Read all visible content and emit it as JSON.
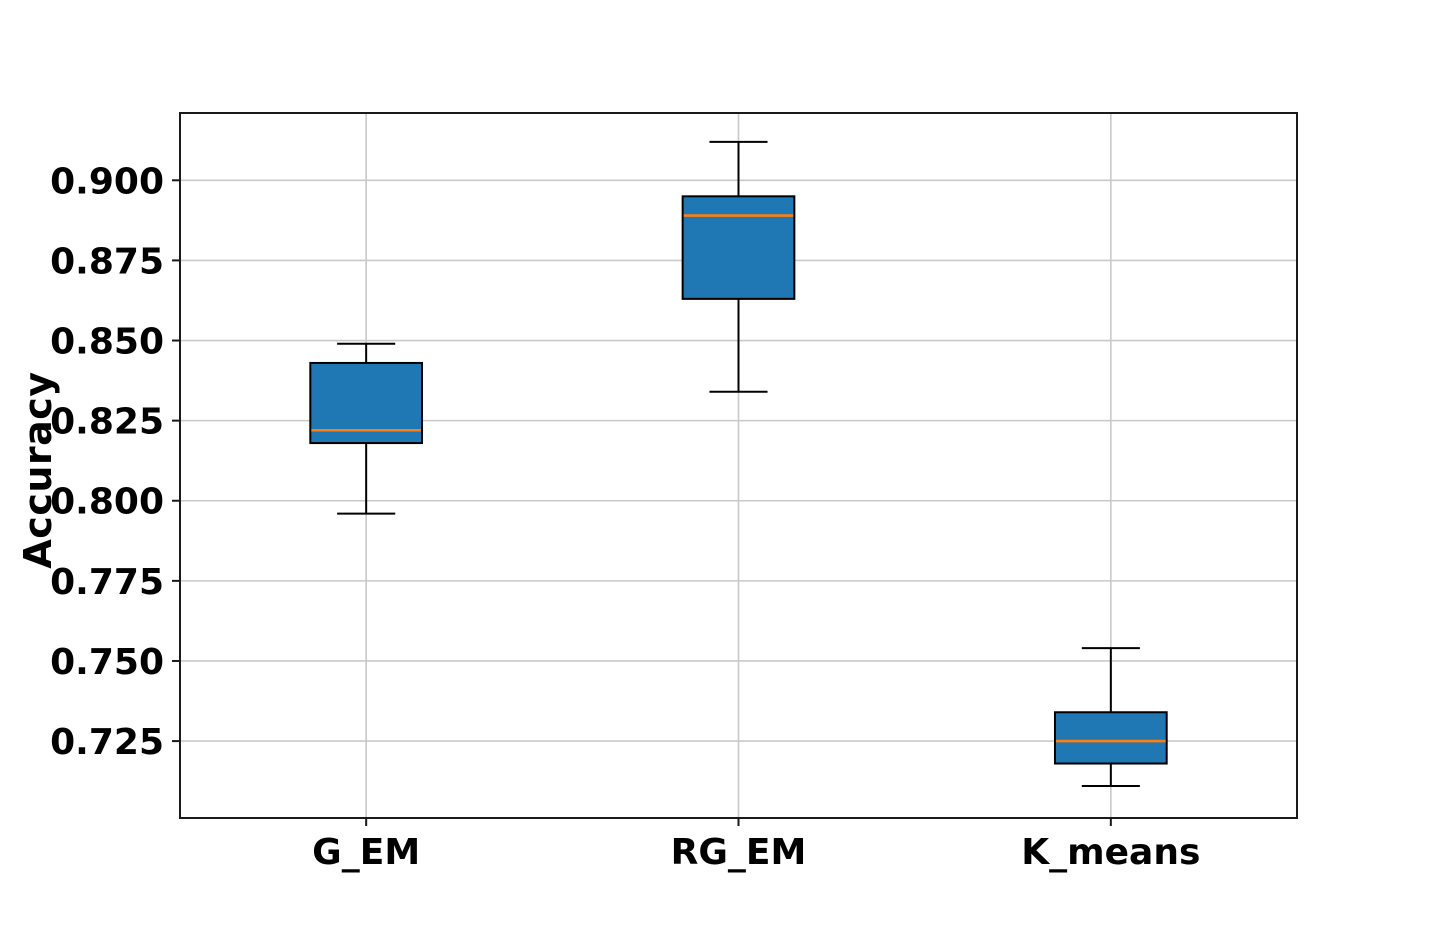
{
  "figure": {
    "background": "#ffffff"
  },
  "chart_data": {
    "type": "boxplot",
    "title": "",
    "xlabel": "",
    "ylabel": "Accuracy",
    "categories": [
      "G_EM",
      "RG_EM",
      "K_means"
    ],
    "series": [
      {
        "name": "G_EM",
        "whisker_low": 0.796,
        "q1": 0.818,
        "median": 0.822,
        "q3": 0.843,
        "whisker_high": 0.849
      },
      {
        "name": "RG_EM",
        "whisker_low": 0.834,
        "q1": 0.863,
        "median": 0.889,
        "q3": 0.895,
        "whisker_high": 0.912
      },
      {
        "name": "K_means",
        "whisker_low": 0.711,
        "q1": 0.718,
        "median": 0.725,
        "q3": 0.734,
        "whisker_high": 0.754
      }
    ],
    "ylim": [
      0.701,
      0.921
    ],
    "yticks": [
      0.725,
      0.75,
      0.775,
      0.8,
      0.825,
      0.85,
      0.875,
      0.9
    ],
    "ytick_labels": [
      "0.725",
      "0.750",
      "0.775",
      "0.800",
      "0.825",
      "0.850",
      "0.875",
      "0.900"
    ],
    "grid": true,
    "legend": null,
    "colors": {
      "box_fill": "#1f77b4",
      "box_edge": "#000000",
      "median": "#ff7f0e",
      "whisker": "#000000",
      "grid": "#c9c9c9",
      "spine": "#1a1a1a",
      "text": "#000000"
    }
  }
}
